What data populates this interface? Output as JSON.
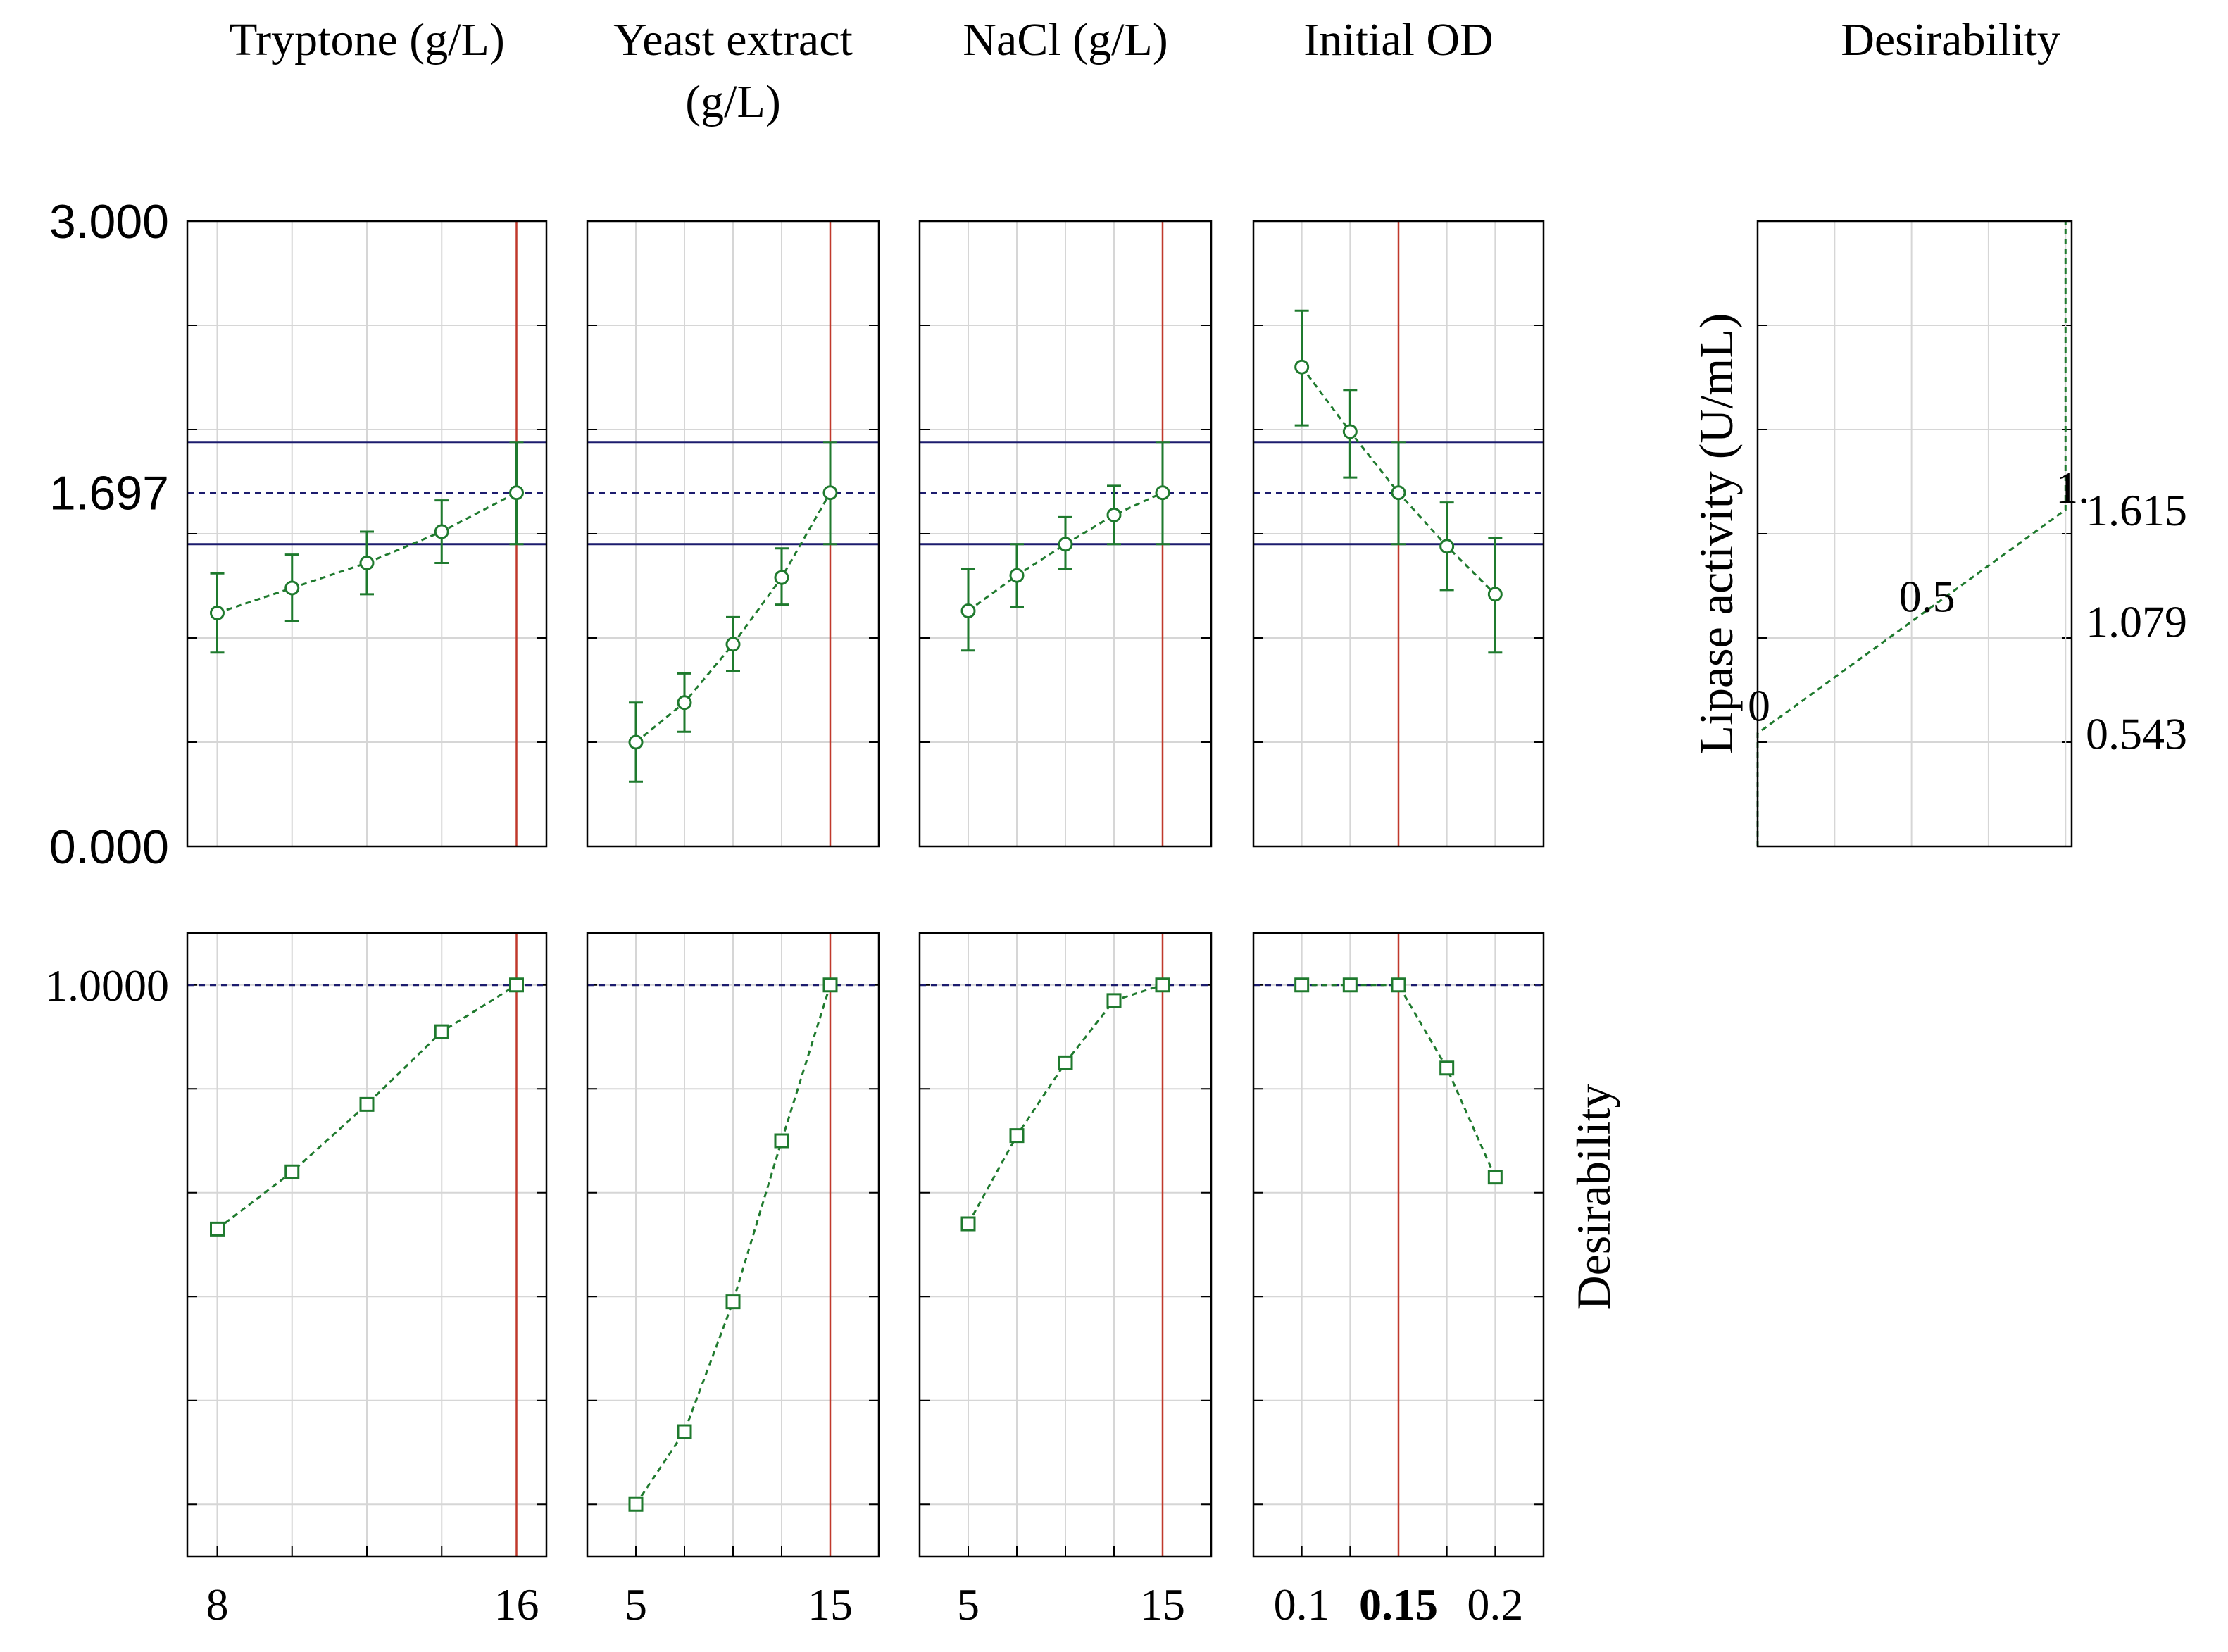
{
  "colors": {
    "series": "#1f7a2e",
    "reference": "#c0392b",
    "band": "#1c1c6e",
    "grid": "#d6d6d6",
    "frame": "#000000"
  },
  "chart_data": {
    "type": "profile",
    "columns": [
      {
        "key": "tryptone",
        "title": [
          "Tryptone (g/L)"
        ],
        "x": [
          8,
          10,
          12,
          14,
          16
        ],
        "xrange": [
          7.2,
          16.8
        ],
        "xgrid": [
          8,
          10,
          12,
          14,
          16
        ],
        "tick_labels": [
          {
            "value": 8,
            "label": "8",
            "bold": false
          },
          {
            "value": 16,
            "label": "16",
            "bold": false
          }
        ],
        "current": 16,
        "lipase": {
          "mean": [
            1.12,
            1.24,
            1.36,
            1.51,
            1.697
          ],
          "lower": [
            0.93,
            1.08,
            1.21,
            1.36,
            1.45
          ],
          "upper": [
            1.31,
            1.4,
            1.51,
            1.66,
            1.94
          ]
        },
        "desirability": [
          0.53,
          0.64,
          0.77,
          0.91,
          1.0
        ]
      },
      {
        "key": "yeast",
        "title": [
          "Yeast extract",
          "(g/L)"
        ],
        "x": [
          5,
          7.5,
          10,
          12.5,
          15
        ],
        "xrange": [
          2.5,
          17.5
        ],
        "xgrid": [
          5,
          7.5,
          10,
          12.5,
          15
        ],
        "tick_labels": [
          {
            "value": 5,
            "label": "5",
            "bold": false
          },
          {
            "value": 15,
            "label": "15",
            "bold": false
          }
        ],
        "current": 15,
        "lipase": {
          "mean": [
            0.5,
            0.69,
            0.97,
            1.29,
            1.697
          ],
          "lower": [
            0.31,
            0.55,
            0.84,
            1.16,
            1.45
          ],
          "upper": [
            0.69,
            0.83,
            1.1,
            1.43,
            1.94
          ]
        },
        "desirability": [
          0.0,
          0.14,
          0.39,
          0.7,
          1.0
        ]
      },
      {
        "key": "nacl",
        "title": [
          "NaCl (g/L)"
        ],
        "x": [
          5,
          7.5,
          10,
          12.5,
          15
        ],
        "xrange": [
          2.5,
          17.5
        ],
        "xgrid": [
          5,
          7.5,
          10,
          12.5,
          15
        ],
        "tick_labels": [
          {
            "value": 5,
            "label": "5",
            "bold": false
          },
          {
            "value": 15,
            "label": "15",
            "bold": false
          }
        ],
        "current": 15,
        "lipase": {
          "mean": [
            1.13,
            1.3,
            1.45,
            1.59,
            1.697
          ],
          "lower": [
            0.94,
            1.15,
            1.33,
            1.45,
            1.45
          ],
          "upper": [
            1.33,
            1.45,
            1.58,
            1.73,
            1.94
          ]
        },
        "desirability": [
          0.54,
          0.71,
          0.85,
          0.97,
          1.0
        ]
      },
      {
        "key": "od",
        "title": [
          "Initial OD"
        ],
        "x": [
          0.1,
          0.125,
          0.15,
          0.175,
          0.2
        ],
        "xrange": [
          0.075,
          0.225
        ],
        "xgrid": [
          0.1,
          0.125,
          0.15,
          0.175,
          0.2
        ],
        "tick_labels": [
          {
            "value": 0.1,
            "label": "0.1",
            "bold": false
          },
          {
            "value": 0.15,
            "label": "0.15",
            "bold": true
          },
          {
            "value": 0.2,
            "label": "0.2",
            "bold": false
          }
        ],
        "current": 0.15,
        "lipase": {
          "mean": [
            2.3,
            1.99,
            1.697,
            1.44,
            1.21
          ],
          "lower": [
            2.02,
            1.77,
            1.45,
            1.23,
            0.93
          ],
          "upper": [
            2.57,
            2.19,
            1.94,
            1.65,
            1.48
          ]
        },
        "desirability": [
          1.0,
          1.0,
          1.0,
          0.84,
          0.63
        ]
      }
    ],
    "lipase_axis": {
      "ylim": [
        0,
        3
      ],
      "grid": [
        0,
        0.5,
        1.0,
        1.5,
        2.0,
        2.5,
        3.0
      ],
      "tick_labels": [
        {
          "value": 3.0,
          "label": "3.000"
        },
        {
          "value": 1.697,
          "label": "1.697"
        },
        {
          "value": 0.0,
          "label": "0.000"
        }
      ],
      "current_value": 1.697,
      "ci_band": [
        1.45,
        1.94
      ]
    },
    "desirability_axis": {
      "ylim": [
        -0.1,
        1.1
      ],
      "grid": [
        0,
        0.2,
        0.4,
        0.6,
        0.8,
        1.0
      ],
      "tick_labels": [
        {
          "value": 1.0,
          "label": "1.0000"
        }
      ],
      "reference": 1.0,
      "ylabel": "Desirability"
    },
    "desirability_function": {
      "title": "Desirability",
      "ylabel": "Lipase activity (U/mL)",
      "xlim": [
        0,
        1.02
      ],
      "xgrid": [
        0,
        0.25,
        0.5,
        0.75,
        1.0
      ],
      "points": [
        {
          "d": 0,
          "y": 0
        },
        {
          "d": 0,
          "y": 0.543
        },
        {
          "d": 1,
          "y": 1.615
        },
        {
          "d": 1,
          "y": 3.0
        }
      ],
      "point_labels": [
        {
          "d": 0,
          "y": 0.543,
          "label": "0"
        },
        {
          "d": 0.5,
          "y": 1.079,
          "label": "0.5"
        },
        {
          "d": 1,
          "y": 1.615,
          "label": "1."
        }
      ],
      "right_ticks": [
        {
          "value": 1.615,
          "label": "1.615"
        },
        {
          "value": 1.079,
          "label": "1.079"
        },
        {
          "value": 0.543,
          "label": "0.543"
        }
      ]
    }
  }
}
